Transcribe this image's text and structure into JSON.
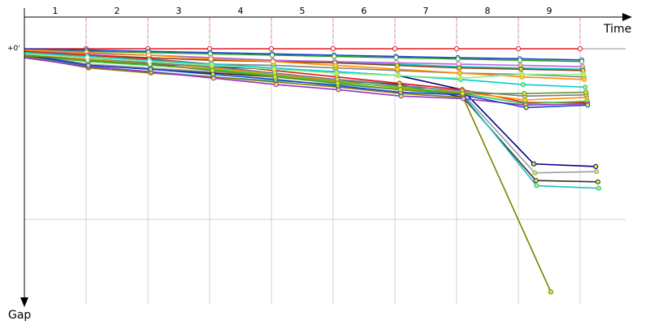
{
  "chart_data": {
    "type": "line",
    "x_axis_label": "Time",
    "y_axis_label": "Gap",
    "zero_label": "+0'",
    "lap_labels": [
      "1",
      "2",
      "3",
      "4",
      "5",
      "6",
      "7",
      "8",
      "9"
    ],
    "grid": true,
    "colors": {
      "grid": "#d0d0d0",
      "leader_trace": "#f08080",
      "marker_fill": "#d8e83a"
    },
    "series": [
      {
        "color": "#e41a1c",
        "values": [
          0,
          0,
          0,
          0,
          0,
          0,
          0,
          0,
          0,
          0
        ]
      },
      {
        "color": "#1f3fd0",
        "values": [
          0,
          0.5,
          1.0,
          1.5,
          2.0,
          2.5,
          3.0,
          3.5,
          3.9,
          4.4
        ]
      },
      {
        "color": "#2ca02c",
        "values": [
          0.5,
          1.0,
          1.5,
          2.0,
          2.5,
          3.0,
          3.5,
          4.0,
          4.5,
          5.0
        ]
      },
      {
        "color": "#00c8c8",
        "values": [
          0.5,
          1.5,
          2.5,
          3.5,
          4.5,
          5.5,
          6.0,
          7.0,
          7.5,
          8.0
        ]
      },
      {
        "color": "#c060e0",
        "values": [
          1.0,
          2.0,
          2.5,
          3.5,
          4.5,
          5.0,
          5.5,
          6.0,
          6.5,
          7.0
        ]
      },
      {
        "color": "#8b4513",
        "values": [
          1.5,
          2.5,
          3.5,
          4.5,
          5.0,
          5.5,
          6.5,
          7.5,
          8.0,
          8.5
        ]
      },
      {
        "color": "#808080",
        "values": [
          1.0,
          4.0,
          5.0,
          6.0,
          6.5,
          7.5,
          8.5,
          9.5,
          10.0,
          11.0
        ]
      },
      {
        "color": "#ff8c00",
        "values": [
          0.5,
          1.5,
          2.5,
          4.0,
          5.0,
          6.5,
          8.0,
          9.5,
          11.0,
          12.0
        ]
      },
      {
        "color": "#000080",
        "values": [
          1.5,
          5.0,
          6.0,
          7.0,
          8.0,
          9.0,
          10.5,
          16.0,
          45.0,
          46.0
        ]
      },
      {
        "color": "#a0a0a0",
        "values": [
          2.0,
          6.0,
          7.5,
          9.0,
          10.5,
          12.0,
          13.5,
          17.5,
          48.5,
          48.0
        ]
      },
      {
        "color": "#303030",
        "values": [
          2.5,
          6.5,
          8.0,
          9.5,
          11.0,
          12.5,
          14.0,
          19.0,
          51.5,
          52.0
        ]
      },
      {
        "color": "#20c0c0",
        "values": [
          3.0,
          7.0,
          9.0,
          11.0,
          12.5,
          14.0,
          16.0,
          18.0,
          53.5,
          54.5
        ]
      },
      {
        "color": "#808000",
        "values": [
          3.0,
          7.5,
          9.5,
          11.0,
          13.0,
          15.0,
          17.5,
          19.0,
          95.0
        ]
      },
      {
        "color": "#e41a1c",
        "values": [
          1.0,
          2.5,
          4.0,
          6.0,
          8.5,
          11.0,
          13.5,
          16.0,
          21.0,
          21.0
        ]
      },
      {
        "color": "#ff8c00",
        "values": [
          2.0,
          4.0,
          5.5,
          7.5,
          10.0,
          12.5,
          15.5,
          17.0,
          20.0,
          19.0
        ]
      },
      {
        "color": "#32cd32",
        "values": [
          2.5,
          5.0,
          6.5,
          8.0,
          10.5,
          13.0,
          15.0,
          17.5,
          21.5,
          20.5
        ]
      },
      {
        "color": "#9932cc",
        "values": [
          3.5,
          7.0,
          9.0,
          11.5,
          14.0,
          16.0,
          18.5,
          19.5,
          22.0,
          21.5
        ]
      },
      {
        "color": "#1f3fd0",
        "values": [
          2.0,
          6.5,
          8.0,
          10.0,
          12.0,
          14.5,
          17.0,
          18.0,
          23.0,
          22.0
        ]
      },
      {
        "color": "#708090",
        "values": [
          1.5,
          3.5,
          5.5,
          7.0,
          9.5,
          12.0,
          14.5,
          16.5,
          18.5,
          18.0
        ]
      },
      {
        "color": "#6b8e23",
        "values": [
          2.5,
          4.5,
          6.0,
          8.5,
          11.0,
          13.5,
          16.0,
          17.5,
          17.5,
          17.0
        ]
      },
      {
        "color": "#00ced1",
        "values": [
          1.5,
          3.0,
          4.5,
          6.0,
          7.5,
          9.0,
          10.5,
          12.0,
          14.0,
          15.0
        ]
      },
      {
        "color": "#90ee90",
        "values": [
          2.0,
          3.5,
          5.0,
          6.5,
          8.0,
          9.5,
          10.5,
          11.5,
          10.0,
          10.0
        ]
      }
    ]
  }
}
